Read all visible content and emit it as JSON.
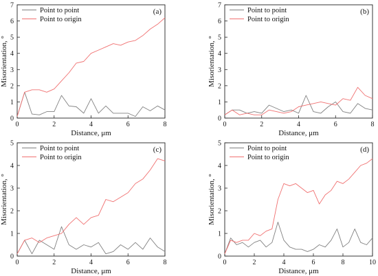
{
  "colors": {
    "point_to_point": "#808080",
    "point_to_origin": "#f07070"
  },
  "chart_data": [
    {
      "type": "line",
      "panel_label": "(a)",
      "xlabel": "Distance, μm",
      "ylabel": "Misorientation, °",
      "xlim": [
        0,
        8
      ],
      "ylim": [
        0,
        7
      ],
      "xticks": [
        0,
        2,
        4,
        6,
        8
      ],
      "yticks": [
        0,
        1,
        2,
        3,
        4,
        5,
        6,
        7
      ],
      "legend_position": "top-left",
      "series": [
        {
          "name": "Point to point",
          "color": "#808080",
          "x": [
            0,
            0.4,
            0.8,
            1.2,
            1.6,
            2.0,
            2.4,
            2.8,
            3.2,
            3.6,
            4.0,
            4.4,
            4.8,
            5.2,
            5.6,
            6.0,
            6.4,
            6.8,
            7.2,
            7.6,
            8.0
          ],
          "y": [
            0.1,
            1.6,
            0.25,
            0.2,
            0.4,
            0.4,
            1.4,
            0.75,
            0.7,
            0.3,
            1.2,
            0.3,
            0.75,
            0.3,
            0.3,
            0.3,
            0.1,
            0.7,
            0.45,
            0.75,
            0.5
          ]
        },
        {
          "name": "Point to origin",
          "color": "#f07070",
          "x": [
            0,
            0.4,
            0.8,
            1.2,
            1.6,
            2.0,
            2.4,
            2.8,
            3.2,
            3.6,
            4.0,
            4.4,
            4.8,
            5.2,
            5.6,
            6.0,
            6.4,
            6.8,
            7.2,
            7.6,
            8.0
          ],
          "y": [
            0.1,
            1.6,
            1.75,
            1.75,
            1.6,
            1.8,
            2.3,
            2.8,
            3.4,
            3.5,
            4.0,
            4.2,
            4.4,
            4.6,
            4.5,
            4.7,
            4.8,
            5.1,
            5.5,
            5.8,
            6.2
          ]
        }
      ]
    },
    {
      "type": "line",
      "panel_label": "(b)",
      "xlabel": "Distance, μm",
      "ylabel": "Misorientation, °",
      "xlim": [
        0,
        8
      ],
      "ylim": [
        0,
        7
      ],
      "xticks": [
        0,
        2,
        4,
        6,
        8
      ],
      "yticks": [
        0,
        1,
        2,
        3,
        4,
        5,
        6,
        7
      ],
      "legend_position": "top-left",
      "series": [
        {
          "name": "Point to point",
          "color": "#808080",
          "x": [
            0,
            0.4,
            0.8,
            1.2,
            1.6,
            2.0,
            2.4,
            2.8,
            3.2,
            3.6,
            4.0,
            4.4,
            4.8,
            5.2,
            5.6,
            6.0,
            6.4,
            6.8,
            7.2,
            7.6,
            8.0
          ],
          "y": [
            0.2,
            0.5,
            0.5,
            0.3,
            0.4,
            0.3,
            0.8,
            0.6,
            0.4,
            0.5,
            0.3,
            1.4,
            0.4,
            0.3,
            0.7,
            1.0,
            0.4,
            0.3,
            0.9,
            0.6,
            0.5
          ]
        },
        {
          "name": "Point to origin",
          "color": "#f07070",
          "x": [
            0,
            0.4,
            0.8,
            1.2,
            1.6,
            2.0,
            2.4,
            2.8,
            3.2,
            3.6,
            4.0,
            4.4,
            4.8,
            5.2,
            5.6,
            6.0,
            6.4,
            6.8,
            7.2,
            7.6,
            8.0
          ],
          "y": [
            0.2,
            0.5,
            0.2,
            0.3,
            0.2,
            0.2,
            0.5,
            0.4,
            0.3,
            0.4,
            0.7,
            0.8,
            0.9,
            1.0,
            0.9,
            0.8,
            1.2,
            1.1,
            1.9,
            1.4,
            1.2
          ]
        }
      ]
    },
    {
      "type": "line",
      "panel_label": "(c)",
      "xlabel": "Distance, μm",
      "ylabel": "Misorientation, °",
      "xlim": [
        0,
        8
      ],
      "ylim": [
        0,
        5
      ],
      "xticks": [
        0,
        2,
        4,
        6,
        8
      ],
      "yticks": [
        0,
        1,
        2,
        3,
        4,
        5
      ],
      "legend_position": "top-left",
      "series": [
        {
          "name": "Point to point",
          "color": "#808080",
          "x": [
            0,
            0.4,
            0.8,
            1.2,
            1.6,
            2.0,
            2.4,
            2.8,
            3.2,
            3.6,
            4.0,
            4.4,
            4.8,
            5.2,
            5.6,
            6.0,
            6.4,
            6.8,
            7.2,
            7.6,
            8.0
          ],
          "y": [
            0.1,
            0.7,
            0.1,
            0.7,
            0.5,
            0.3,
            1.3,
            0.5,
            0.3,
            0.5,
            0.4,
            0.6,
            0.1,
            0.2,
            0.5,
            0.3,
            0.6,
            0.3,
            0.8,
            0.4,
            0.2
          ]
        },
        {
          "name": "Point to origin",
          "color": "#f07070",
          "x": [
            0,
            0.4,
            0.8,
            1.2,
            1.6,
            2.0,
            2.4,
            2.8,
            3.2,
            3.6,
            4.0,
            4.4,
            4.8,
            5.2,
            5.6,
            6.0,
            6.4,
            6.8,
            7.2,
            7.6,
            8.0
          ],
          "y": [
            0.1,
            0.7,
            0.8,
            0.6,
            0.8,
            0.9,
            1.0,
            1.4,
            1.7,
            1.4,
            1.7,
            1.8,
            2.5,
            2.4,
            2.6,
            2.8,
            3.2,
            3.4,
            3.8,
            4.3,
            4.2
          ]
        }
      ]
    },
    {
      "type": "line",
      "panel_label": "(d)",
      "xlabel": "Distance, μm",
      "ylabel": "Misorientation, °",
      "xlim": [
        0,
        10
      ],
      "ylim": [
        0,
        5
      ],
      "xticks": [
        0,
        2,
        4,
        6,
        8,
        10
      ],
      "yticks": [
        0,
        1,
        2,
        3,
        4,
        5
      ],
      "legend_position": "top-left",
      "series": [
        {
          "name": "Point to point",
          "color": "#808080",
          "x": [
            0,
            0.4,
            0.8,
            1.2,
            1.6,
            2.0,
            2.4,
            2.8,
            3.2,
            3.6,
            4.0,
            4.4,
            4.8,
            5.2,
            5.6,
            6.0,
            6.4,
            6.8,
            7.2,
            7.6,
            8.0,
            8.4,
            8.8,
            9.2,
            9.6,
            10.0
          ],
          "y": [
            0.1,
            0.8,
            0.5,
            0.6,
            0.4,
            0.6,
            0.7,
            0.4,
            0.6,
            1.5,
            0.7,
            0.4,
            0.3,
            0.3,
            0.2,
            0.3,
            0.5,
            0.4,
            0.7,
            1.2,
            0.4,
            0.6,
            1.2,
            0.6,
            0.5,
            0.8
          ]
        },
        {
          "name": "Point to origin",
          "color": "#f07070",
          "x": [
            0,
            0.4,
            0.8,
            1.2,
            1.6,
            2.0,
            2.4,
            2.8,
            3.2,
            3.6,
            4.0,
            4.4,
            4.8,
            5.2,
            5.6,
            6.0,
            6.4,
            6.8,
            7.2,
            7.6,
            8.0,
            8.4,
            8.8,
            9.2,
            9.6,
            10.0
          ],
          "y": [
            0.1,
            0.7,
            0.6,
            0.7,
            0.7,
            1.0,
            0.9,
            1.1,
            1.2,
            2.5,
            3.2,
            3.1,
            3.2,
            3.0,
            2.8,
            2.9,
            2.3,
            2.7,
            2.9,
            3.3,
            3.2,
            3.4,
            3.7,
            4.0,
            4.1,
            4.3
          ]
        }
      ]
    }
  ]
}
